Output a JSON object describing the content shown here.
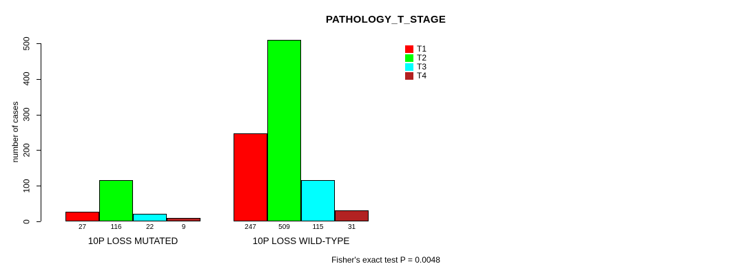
{
  "title": "PATHOLOGY_T_STAGE",
  "chart_data": {
    "type": "bar",
    "title": "PATHOLOGY_T_STAGE",
    "xlabel": "",
    "ylabel": "number of cases",
    "ylim": [
      0,
      500
    ],
    "yticks": [
      0,
      100,
      200,
      300,
      400,
      500
    ],
    "grid": false,
    "legend_position": "top-right",
    "categories": [
      "10P LOSS MUTATED",
      "10P LOSS WILD-TYPE"
    ],
    "series": [
      {
        "name": "T1",
        "color": "#ff0000",
        "values": [
          27,
          247
        ]
      },
      {
        "name": "T2",
        "color": "#00ff00",
        "values": [
          116,
          509
        ]
      },
      {
        "name": "T3",
        "color": "#00ffff",
        "values": [
          22,
          115
        ]
      },
      {
        "name": "T4",
        "color": "#b22222",
        "values": [
          9,
          31
        ]
      }
    ],
    "bar_value_labels": [
      [
        "27",
        "116",
        "22",
        "9"
      ],
      [
        "247",
        "509",
        "115",
        "31"
      ]
    ],
    "annotation": "Fisher's exact test P = 0.0048"
  }
}
